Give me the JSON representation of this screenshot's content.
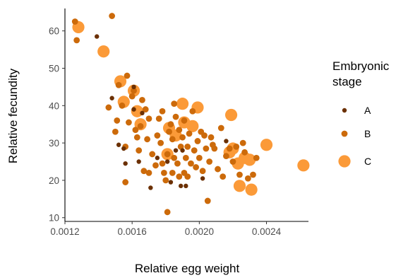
{
  "chart_data": {
    "type": "scatter",
    "title": "",
    "xlabel": "Relative egg weight",
    "ylabel": "Relative fecundity",
    "xlim": [
      0.0012,
      0.00265
    ],
    "ylim": [
      9,
      66
    ],
    "x_ticks": [
      0.0012,
      0.0016,
      0.002,
      0.0024
    ],
    "x_tick_labels": [
      "0.0012",
      "0.0016",
      "0.0020",
      "0.0024"
    ],
    "y_ticks": [
      10,
      20,
      30,
      40,
      50,
      60
    ],
    "y_tick_labels": [
      "10",
      "20",
      "30",
      "40",
      "50",
      "60"
    ],
    "grid": false,
    "legend": {
      "title": "Embryonic stage",
      "title_lines": [
        "Embryonic",
        "stage"
      ],
      "placement": "right",
      "entries": [
        {
          "label": "A",
          "color": "#6b3003",
          "size": "small"
        },
        {
          "label": "B",
          "color": "#cc6a0a",
          "size": "medium"
        },
        {
          "label": "C",
          "color": "#fb9a38",
          "size": "large"
        }
      ]
    },
    "series": [
      {
        "name": "A",
        "color": "#6b3003",
        "size": "small",
        "points": [
          [
            0.00139,
            58.5
          ],
          [
            0.00148,
            42.0
          ],
          [
            0.00152,
            29.5
          ],
          [
            0.00155,
            28.5
          ],
          [
            0.00156,
            24.5
          ],
          [
            0.00161,
            45.0
          ],
          [
            0.00161,
            39.0
          ],
          [
            0.00164,
            25.0
          ],
          [
            0.00166,
            38.0
          ],
          [
            0.00171,
            18.0
          ],
          [
            0.00175,
            26.0
          ],
          [
            0.00181,
            25.0
          ],
          [
            0.00183,
            19.5
          ],
          [
            0.00186,
            28.0
          ],
          [
            0.00189,
            18.5
          ],
          [
            0.0019,
            28.0
          ],
          [
            0.00192,
            18.5
          ],
          [
            0.00202,
            20.5
          ],
          [
            0.00216,
            30.5
          ]
        ]
      },
      {
        "name": "B",
        "color": "#cc6a0a",
        "size": "medium",
        "points": [
          [
            0.00126,
            62.5
          ],
          [
            0.00127,
            57.5
          ],
          [
            0.00148,
            64.0
          ],
          [
            0.00146,
            39.5
          ],
          [
            0.0015,
            33.0
          ],
          [
            0.00151,
            36.0
          ],
          [
            0.00152,
            45.5
          ],
          [
            0.00154,
            40.0
          ],
          [
            0.00156,
            29.0
          ],
          [
            0.00157,
            48.0
          ],
          [
            0.00156,
            19.5
          ],
          [
            0.00158,
            35.5
          ],
          [
            0.0016,
            42.5
          ],
          [
            0.00161,
            44.0
          ],
          [
            0.00162,
            33.5
          ],
          [
            0.00163,
            31.5
          ],
          [
            0.00164,
            28.0
          ],
          [
            0.00165,
            34.5
          ],
          [
            0.00166,
            41.5
          ],
          [
            0.00167,
            22.5
          ],
          [
            0.00168,
            39.0
          ],
          [
            0.00169,
            31.0
          ],
          [
            0.0017,
            36.5
          ],
          [
            0.0017,
            22.0
          ],
          [
            0.00172,
            27.0
          ],
          [
            0.00174,
            24.0
          ],
          [
            0.00175,
            32.0
          ],
          [
            0.00176,
            36.5
          ],
          [
            0.00177,
            30.0
          ],
          [
            0.00178,
            38.5
          ],
          [
            0.00178,
            24.5
          ],
          [
            0.00179,
            22.0
          ],
          [
            0.0018,
            20.0
          ],
          [
            0.00181,
            27.0
          ],
          [
            0.00181,
            11.5
          ],
          [
            0.00182,
            33.0
          ],
          [
            0.00183,
            35.0
          ],
          [
            0.00184,
            22.0
          ],
          [
            0.00184,
            31.0
          ],
          [
            0.00185,
            40.5
          ],
          [
            0.00185,
            26.0
          ],
          [
            0.00186,
            37.0
          ],
          [
            0.00187,
            24.5
          ],
          [
            0.00188,
            33.5
          ],
          [
            0.00188,
            21.0
          ],
          [
            0.00189,
            29.0
          ],
          [
            0.0019,
            31.5
          ],
          [
            0.00191,
            36.0
          ],
          [
            0.00191,
            22.0
          ],
          [
            0.00192,
            26.0
          ],
          [
            0.00193,
            29.0
          ],
          [
            0.00193,
            21.0
          ],
          [
            0.00194,
            32.5
          ],
          [
            0.00195,
            24.5
          ],
          [
            0.00196,
            38.5
          ],
          [
            0.00197,
            28.0
          ],
          [
            0.00198,
            23.5
          ],
          [
            0.00199,
            30.5
          ],
          [
            0.002,
            26.0
          ],
          [
            0.00201,
            33.0
          ],
          [
            0.00202,
            22.5
          ],
          [
            0.00203,
            32.0
          ],
          [
            0.00204,
            28.5
          ],
          [
            0.00205,
            14.5
          ],
          [
            0.00206,
            25.0
          ],
          [
            0.00207,
            31.5
          ],
          [
            0.00209,
            28.5
          ],
          [
            0.00211,
            23.0
          ],
          [
            0.00213,
            34.0
          ],
          [
            0.00214,
            21.0
          ],
          [
            0.00216,
            26.5
          ],
          [
            0.00218,
            28.5
          ],
          [
            0.0022,
            25.0
          ],
          [
            0.00222,
            29.0
          ],
          [
            0.00224,
            21.5
          ],
          [
            0.00226,
            30.0
          ],
          [
            0.00229,
            20.5
          ],
          [
            0.00232,
            21.5
          ],
          [
            0.00234,
            26.0
          ],
          [
            0.00227,
            27.5
          ],
          [
            0.00208,
            29.5
          ]
        ]
      },
      {
        "name": "C",
        "color": "#fb9a38",
        "size": "large",
        "points": [
          [
            0.00128,
            61.0
          ],
          [
            0.00143,
            54.5
          ],
          [
            0.00153,
            46.5
          ],
          [
            0.00155,
            41.0
          ],
          [
            0.00161,
            44.0
          ],
          [
            0.00163,
            38.5
          ],
          [
            0.00165,
            35.0
          ],
          [
            0.00181,
            27.0
          ],
          [
            0.00182,
            34.0
          ],
          [
            0.00186,
            32.0
          ],
          [
            0.0019,
            40.5
          ],
          [
            0.00191,
            35.5
          ],
          [
            0.00196,
            34.5
          ],
          [
            0.00199,
            39.5
          ],
          [
            0.00218,
            27.5
          ],
          [
            0.00219,
            37.5
          ],
          [
            0.0022,
            28.5
          ],
          [
            0.00223,
            24.5
          ],
          [
            0.00224,
            18.5
          ],
          [
            0.00227,
            26.0
          ],
          [
            0.0023,
            25.5
          ],
          [
            0.00231,
            17.5
          ],
          [
            0.0024,
            29.5
          ],
          [
            0.00262,
            24.0
          ]
        ]
      }
    ]
  }
}
